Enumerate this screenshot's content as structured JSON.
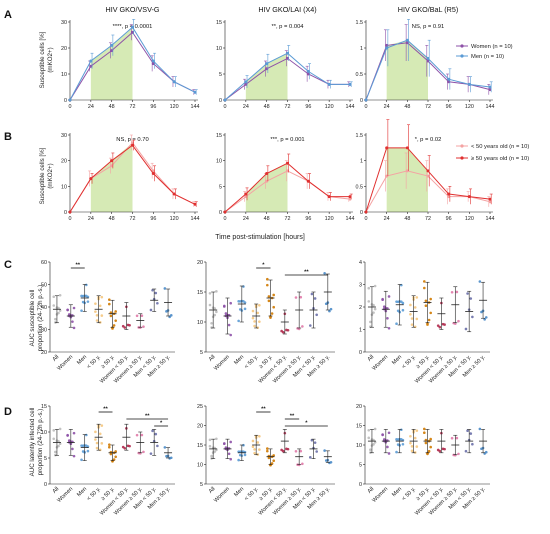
{
  "colors": {
    "women": "#8E52A8",
    "men": "#5B9BD5",
    "young": "#F4A3A3",
    "old": "#E03030",
    "shade": "#CFE6A8",
    "dots": [
      "#BBBBBB",
      "#8E52A8",
      "#5B9BD5",
      "#F5C77E",
      "#D07A00",
      "#B02A4C",
      "#E07AA8",
      "#6A6FA8",
      "#4A8BC8",
      "#23788E"
    ]
  },
  "labels": {
    "A": "A",
    "B": "B",
    "C": "C",
    "D": "D",
    "xaxis": "Time post-stimulation [hours]",
    "ylabel_AB": "Susceptible cells [%]",
    "ylabel_AB_sub": "(mKO2+)",
    "ylabel_C1": "AUC susceptible cell",
    "ylabel_C2": "proportion (24-72h p.-s.)",
    "ylabel_D1": "AUC latently infected cell",
    "ylabel_D2": "proportion (24-72h p.-s.)"
  },
  "legend_A": [
    "Women (n = 10)",
    "Men (n = 10)"
  ],
  "legend_B": [
    "< 50 years old (n = 10)",
    "≥ 50 years old (n = 10)"
  ],
  "chart_data": [
    {
      "type": "line",
      "row": "A",
      "title": "HIV GKO/VSV-G",
      "stat": "****, p < 0.0001",
      "x": [
        0,
        24,
        48,
        72,
        96,
        120,
        144
      ],
      "ylim": [
        0,
        30
      ],
      "yticks": [
        0,
        10,
        20,
        30
      ],
      "shade": [
        24,
        72
      ],
      "series": [
        {
          "name": "Women (n = 10)",
          "values": [
            0,
            13,
            19,
            26,
            14,
            7,
            3
          ],
          "err": [
            0,
            2,
            3,
            3,
            3,
            2,
            1
          ]
        },
        {
          "name": "Men (n = 10)",
          "values": [
            0,
            15,
            21,
            28,
            15,
            7,
            3
          ],
          "err": [
            0,
            3,
            4,
            3,
            3,
            2,
            1
          ]
        }
      ]
    },
    {
      "type": "line",
      "row": "A",
      "title": "HIV GKO/LAI (X4)",
      "stat": "**, p = 0.004",
      "x": [
        0,
        24,
        48,
        72,
        96,
        120,
        144
      ],
      "ylim": [
        0,
        15
      ],
      "yticks": [
        0,
        5,
        10,
        15
      ],
      "shade": [
        24,
        72
      ],
      "series": [
        {
          "name": "Women (n = 10)",
          "values": [
            0,
            3,
            6,
            8,
            5,
            3,
            3
          ],
          "err": [
            0,
            1,
            1.5,
            1.5,
            1.5,
            0.8,
            0.5
          ]
        },
        {
          "name": "Men (n = 10)",
          "values": [
            0,
            3.5,
            7,
            9,
            5.5,
            3,
            3
          ],
          "err": [
            0,
            1.2,
            1.8,
            1.5,
            1.5,
            0.8,
            0.5
          ]
        }
      ]
    },
    {
      "type": "line",
      "row": "A",
      "title": "HIV GKO/BaL (R5)",
      "stat": "NS, p = 0.91",
      "x": [
        0,
        24,
        48,
        72,
        96,
        120,
        144
      ],
      "ylim": [
        0,
        1.5
      ],
      "yticks": [
        0,
        0.5,
        1.0,
        1.5
      ],
      "shade": [
        24,
        72
      ],
      "series": [
        {
          "name": "Women (n = 10)",
          "values": [
            0,
            1.05,
            1.1,
            0.75,
            0.35,
            0.3,
            0.2
          ],
          "err": [
            0,
            0.3,
            0.35,
            0.3,
            0.15,
            0.15,
            0.1
          ]
        },
        {
          "name": "Men (n = 10)",
          "values": [
            0,
            1.0,
            1.15,
            0.8,
            0.4,
            0.3,
            0.25
          ],
          "err": [
            0,
            0.35,
            0.4,
            0.35,
            0.2,
            0.15,
            0.1
          ]
        }
      ]
    },
    {
      "type": "line",
      "row": "B",
      "title": "",
      "stat": "NS, p = 0.70",
      "x": [
        0,
        24,
        48,
        72,
        96,
        120,
        144
      ],
      "ylim": [
        0,
        30
      ],
      "yticks": [
        0,
        10,
        20,
        30
      ],
      "shade": [
        24,
        72
      ],
      "series": [
        {
          "name": "< 50 years old (n = 10)",
          "values": [
            0,
            13,
            18,
            27,
            16,
            7,
            3
          ],
          "err": [
            0,
            3,
            3,
            3,
            3,
            2,
            1
          ]
        },
        {
          "name": "≥ 50 years old (n = 10)",
          "values": [
            0,
            13,
            20,
            26,
            15,
            7,
            3
          ],
          "err": [
            0,
            2,
            3,
            2,
            3,
            2,
            1
          ]
        }
      ]
    },
    {
      "type": "line",
      "row": "B",
      "title": "",
      "stat": "***, p = 0.001",
      "x": [
        0,
        24,
        48,
        72,
        96,
        120,
        144
      ],
      "ylim": [
        0,
        15
      ],
      "yticks": [
        0,
        5,
        10,
        15
      ],
      "shade": [
        24,
        72
      ],
      "series": [
        {
          "name": "< 50 years old (n = 10)",
          "values": [
            0,
            3,
            6,
            8,
            6,
            3,
            2.5
          ],
          "err": [
            0,
            1,
            1.5,
            2,
            1.5,
            0.8,
            0.5
          ]
        },
        {
          "name": "≥ 50 years old (n = 10)",
          "values": [
            0,
            3.5,
            7.5,
            9.5,
            6,
            3,
            3
          ],
          "err": [
            0,
            1.2,
            1.5,
            1.8,
            1.5,
            0.8,
            0.5
          ]
        }
      ]
    },
    {
      "type": "line",
      "row": "B",
      "title": "",
      "stat": "*, p = 0.02",
      "x": [
        0,
        24,
        48,
        72,
        96,
        120,
        144
      ],
      "ylim": [
        0,
        1.5
      ],
      "yticks": [
        0,
        0.5,
        1.0,
        1.5
      ],
      "shade": [
        24,
        72
      ],
      "series": [
        {
          "name": "< 50 years old (n = 10)",
          "values": [
            0,
            0.7,
            0.8,
            0.7,
            0.3,
            0.3,
            0.2
          ],
          "err": [
            0,
            0.3,
            0.35,
            0.3,
            0.15,
            0.1,
            0.1
          ]
        },
        {
          "name": "≥ 50 years old (n = 10)",
          "values": [
            0,
            1.25,
            1.25,
            0.8,
            0.35,
            0.3,
            0.25
          ],
          "err": [
            0,
            0.55,
            0.45,
            0.3,
            0.15,
            0.15,
            0.1
          ]
        }
      ]
    },
    {
      "type": "scatter",
      "row": "C",
      "categories": [
        "All",
        "Women",
        "Men",
        "< 50 y.",
        "≥ 50 y.",
        "Women < 50 y.",
        "Women ≥ 50 y.",
        "Men < 50 y.",
        "Men ≥ 50 y."
      ],
      "ylim": [
        20,
        60
      ],
      "yticks": [
        20,
        30,
        40,
        50,
        60
      ],
      "means": [
        39,
        36,
        44,
        39,
        37,
        36,
        34,
        43,
        42
      ],
      "sds": [
        6,
        5,
        6,
        6,
        6,
        6,
        3,
        5,
        6
      ],
      "brackets": [
        {
          "from": 1,
          "to": 2,
          "label": "**"
        }
      ]
    },
    {
      "type": "scatter",
      "row": "C",
      "categories": [
        "All",
        "Women",
        "Men",
        "< 50 y.",
        "≥ 50 y.",
        "Women < 50 y.",
        "Women ≥ 50 y.",
        "Men < 50 y.",
        "Men ≥ 50 y."
      ],
      "ylim": [
        5,
        20
      ],
      "yticks": [
        5,
        10,
        15,
        20
      ],
      "means": [
        12,
        11,
        13,
        11,
        14,
        10,
        12,
        12,
        15
      ],
      "sds": [
        3,
        3,
        3,
        2,
        3,
        2,
        3,
        3,
        3
      ],
      "brackets": [
        {
          "from": 3,
          "to": 4,
          "label": "*"
        },
        {
          "from": 5,
          "to": 8,
          "label": "**"
        }
      ]
    },
    {
      "type": "scatter",
      "row": "C",
      "categories": [
        "All",
        "Women",
        "Men",
        "< 50 y.",
        "≥ 50 y.",
        "Women < 50 y.",
        "Women ≥ 50 y.",
        "Men < 50 y.",
        "Men ≥ 50 y."
      ],
      "ylim": [
        0,
        4
      ],
      "yticks": [
        0,
        1,
        2,
        3,
        4
      ],
      "means": [
        2.0,
        1.9,
        2.1,
        1.8,
        2.2,
        1.7,
        2.1,
        1.8,
        2.3
      ],
      "sds": [
        0.9,
        0.8,
        0.9,
        0.7,
        0.9,
        0.7,
        0.8,
        0.9,
        0.8
      ],
      "brackets": []
    },
    {
      "type": "scatter",
      "row": "D",
      "categories": [
        "All",
        "Women",
        "Men",
        "< 50 y.",
        "≥ 50 y.",
        "Women < 50 y.",
        "Women ≥ 50 y.",
        "Men < 50 y.",
        "Men ≥ 50 y."
      ],
      "ylim": [
        0,
        15
      ],
      "yticks": [
        0,
        5,
        10,
        15
      ],
      "means": [
        8,
        8,
        7,
        9,
        6,
        9,
        8,
        8,
        6
      ],
      "sds": [
        2.5,
        2.5,
        2.5,
        2.5,
        1.5,
        2.5,
        2,
        2.5,
        1
      ],
      "brackets": [
        {
          "from": 3,
          "to": 4,
          "label": "**"
        },
        {
          "from": 5,
          "to": 8,
          "label": "**"
        },
        {
          "from": 7,
          "to": 8,
          "label": "*"
        }
      ]
    },
    {
      "type": "scatter",
      "row": "D",
      "categories": [
        "All",
        "Women",
        "Men",
        "< 50 y.",
        "≥ 50 y.",
        "Women < 50 y.",
        "Women ≥ 50 y.",
        "Men < 50 y.",
        "Men ≥ 50 y."
      ],
      "ylim": [
        5,
        25
      ],
      "yticks": [
        5,
        10,
        15,
        20,
        25
      ],
      "means": [
        14,
        14,
        13,
        15,
        12,
        16,
        12,
        14,
        12
      ],
      "sds": [
        2.5,
        2.5,
        2,
        2.5,
        2,
        3,
        2,
        2.5,
        1.5
      ],
      "brackets": [
        {
          "from": 3,
          "to": 4,
          "label": "**"
        },
        {
          "from": 5,
          "to": 6,
          "label": "**"
        },
        {
          "from": 5,
          "to": 8,
          "label": "*"
        }
      ]
    },
    {
      "type": "scatter",
      "row": "D",
      "categories": [
        "All",
        "Women",
        "Men",
        "< 50 y.",
        "≥ 50 y.",
        "Women < 50 y.",
        "Women ≥ 50 y.",
        "Men < 50 y.",
        "Men ≥ 50 y."
      ],
      "ylim": [
        0,
        20
      ],
      "yticks": [
        0,
        5,
        10,
        15,
        20
      ],
      "means": [
        11,
        11,
        11,
        11,
        11,
        11,
        10,
        11,
        11
      ],
      "sds": [
        3,
        3,
        3,
        3,
        3,
        3,
        2.5,
        3,
        3
      ],
      "brackets": []
    }
  ]
}
